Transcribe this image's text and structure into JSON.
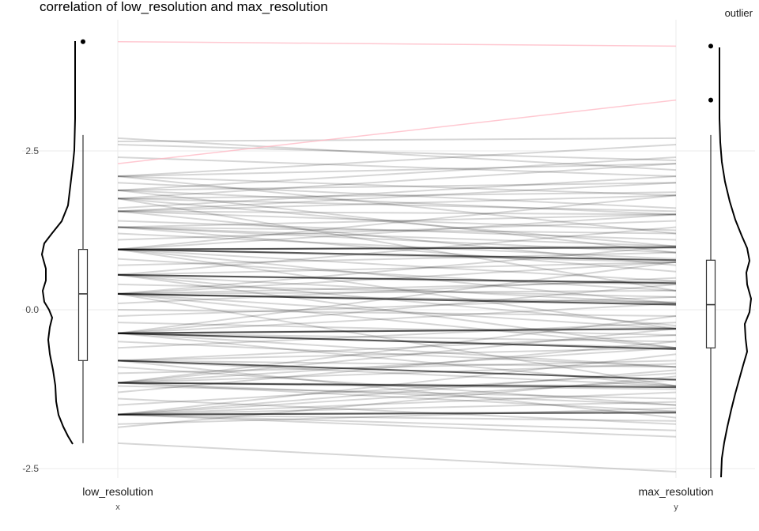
{
  "chart_data": {
    "type": "line",
    "subtype": "paired-slope with marginal boxplots and density curves",
    "title": "correlation of low_resolution and max_resolution",
    "legend_label": "outlier",
    "categories": [
      "low_resolution",
      "max_resolution"
    ],
    "axis_names": [
      "x",
      "y"
    ],
    "ylim": [
      -2.5,
      4.3
    ],
    "yticks": [
      -2.5,
      0.0,
      2.5
    ],
    "ytick_labels": [
      "-2.5",
      "0.0",
      "2.5"
    ],
    "grid": true,
    "colors": {
      "line": "#000000",
      "outlier_line": "#ffb6c1",
      "grid": "#ebebeb"
    },
    "pairs": [
      [
        -1.65,
        -1.6
      ],
      [
        -1.65,
        -1.62
      ],
      [
        -1.65,
        -1.3
      ],
      [
        -1.65,
        -1.1
      ],
      [
        -1.65,
        -1.9
      ],
      [
        -1.65,
        -0.7
      ],
      [
        -1.65,
        -1.45
      ],
      [
        -1.65,
        -1.75
      ],
      [
        -1.65,
        -0.95
      ],
      [
        -1.65,
        -2.0
      ],
      [
        -1.15,
        -1.2
      ],
      [
        -1.15,
        -1.22
      ],
      [
        -1.15,
        -0.6
      ],
      [
        -1.15,
        -0.3
      ],
      [
        -1.15,
        -1.5
      ],
      [
        -1.15,
        -1.6
      ],
      [
        -1.15,
        -0.85
      ],
      [
        -1.15,
        -0.1
      ],
      [
        -1.15,
        -1.25
      ],
      [
        -0.8,
        -1.2
      ],
      [
        -0.8,
        -0.6
      ],
      [
        -0.8,
        -1.1
      ],
      [
        -0.8,
        -0.4
      ],
      [
        -0.8,
        -1.7
      ],
      [
        -0.8,
        -0.9
      ],
      [
        -0.37,
        -0.6
      ],
      [
        -0.37,
        -0.3
      ],
      [
        -0.37,
        -0.28
      ],
      [
        -0.37,
        -0.62
      ],
      [
        -0.37,
        0.1
      ],
      [
        -0.37,
        -1.2
      ],
      [
        -0.37,
        0.4
      ],
      [
        -0.37,
        -0.5
      ],
      [
        -0.37,
        -0.9
      ],
      [
        -0.37,
        0.75
      ],
      [
        0.25,
        0.1
      ],
      [
        0.25,
        0.08
      ],
      [
        0.25,
        -0.3
      ],
      [
        0.25,
        0.45
      ],
      [
        0.25,
        -0.6
      ],
      [
        0.25,
        0.75
      ],
      [
        0.25,
        1.0
      ],
      [
        0.25,
        -1.2
      ],
      [
        0.25,
        0.3
      ],
      [
        0.25,
        0.12
      ],
      [
        0.55,
        0.4
      ],
      [
        0.55,
        0.1
      ],
      [
        0.55,
        0.75
      ],
      [
        0.55,
        -0.25
      ],
      [
        0.55,
        1.3
      ],
      [
        0.55,
        -0.6
      ],
      [
        0.55,
        0.42
      ],
      [
        0.95,
        1.0
      ],
      [
        0.95,
        0.75
      ],
      [
        0.95,
        0.45
      ],
      [
        0.95,
        1.5
      ],
      [
        0.95,
        0.1
      ],
      [
        0.95,
        -0.3
      ],
      [
        0.95,
        1.8
      ],
      [
        0.95,
        0.98
      ],
      [
        0.95,
        0.78
      ],
      [
        1.3,
        1.2
      ],
      [
        1.3,
        0.6
      ],
      [
        1.3,
        1.5
      ],
      [
        1.3,
        0.9
      ],
      [
        1.3,
        1.0
      ],
      [
        1.55,
        1.5
      ],
      [
        1.55,
        1.8
      ],
      [
        1.55,
        0.7
      ],
      [
        1.55,
        2.0
      ],
      [
        1.55,
        1.25
      ],
      [
        1.75,
        1.85
      ],
      [
        1.75,
        1.55
      ],
      [
        1.75,
        2.3
      ],
      [
        1.75,
        0.3
      ],
      [
        1.75,
        1.0
      ],
      [
        1.88,
        2.0
      ],
      [
        1.88,
        1.5
      ],
      [
        1.88,
        2.4
      ],
      [
        1.88,
        0.9
      ],
      [
        2.1,
        2.3
      ],
      [
        2.1,
        1.2
      ],
      [
        2.1,
        2.6
      ],
      [
        2.1,
        1.8
      ],
      [
        2.4,
        2.1
      ],
      [
        2.6,
        2.35
      ],
      [
        2.7,
        2.2
      ],
      [
        2.65,
        2.7
      ],
      [
        -1.5,
        -1.0
      ],
      [
        -1.4,
        -1.8
      ],
      [
        -1.3,
        -0.5
      ],
      [
        -1.2,
        -1.4
      ],
      [
        -1.0,
        -0.8
      ],
      [
        -0.9,
        -1.5
      ],
      [
        -0.6,
        -0.2
      ],
      [
        -0.5,
        -0.9
      ],
      [
        -0.2,
        -0.4
      ],
      [
        -0.1,
        0.2
      ],
      [
        0.0,
        -0.1
      ],
      [
        0.1,
        0.5
      ],
      [
        0.4,
        0.2
      ],
      [
        0.7,
        0.9
      ],
      [
        0.8,
        0.3
      ],
      [
        1.1,
        1.4
      ],
      [
        1.2,
        0.8
      ],
      [
        1.4,
        1.1
      ],
      [
        1.6,
        2.1
      ],
      [
        2.0,
        1.6
      ],
      [
        -1.8,
        -1.55
      ],
      [
        -1.85,
        -1.05
      ],
      [
        -2.1,
        -2.55
      ]
    ],
    "strong_pairs": [
      [
        -1.65,
        -1.62
      ],
      [
        -1.15,
        -1.22
      ],
      [
        -0.37,
        -0.62
      ],
      [
        -0.37,
        -0.3
      ],
      [
        0.25,
        0.08
      ],
      [
        0.55,
        0.42
      ],
      [
        0.95,
        0.98
      ],
      [
        0.95,
        0.78
      ],
      [
        -0.8,
        -1.1
      ]
    ],
    "outlier_pairs": [
      [
        4.22,
        4.15
      ],
      [
        2.3,
        3.3
      ]
    ],
    "boxplots": [
      {
        "q1": -0.8,
        "median": 0.25,
        "q3": 0.95,
        "whisker_low": -2.1,
        "whisker_high": 2.75,
        "outliers": [
          4.22
        ]
      },
      {
        "q1": -0.6,
        "median": 0.08,
        "q3": 0.78,
        "whisker_low": -2.65,
        "whisker_high": 2.75,
        "outliers": [
          4.15,
          3.3
        ]
      }
    ]
  }
}
